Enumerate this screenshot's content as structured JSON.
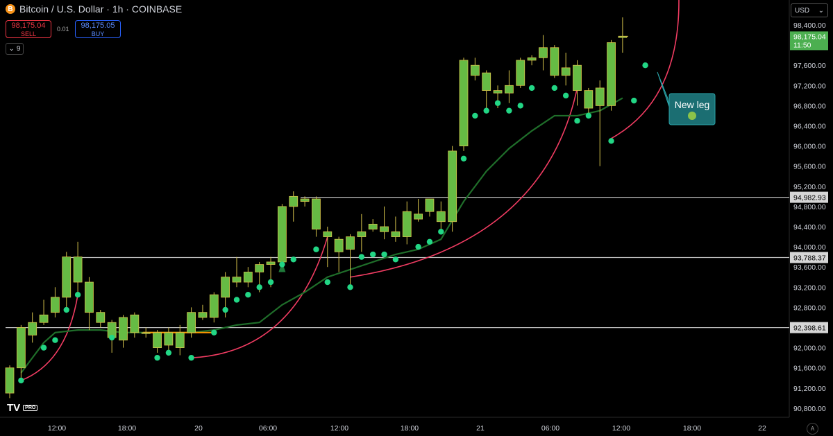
{
  "header": {
    "symbol_icon": "B",
    "title": "Bitcoin / U.S. Dollar · 1h · COINBASE",
    "sell_price": "98,175.04",
    "sell_label": "SELL",
    "buy_price": "98,175.05",
    "buy_label": "BUY",
    "spread": "0.01",
    "indicators_count": "9"
  },
  "toolbar": {
    "currency": "USD",
    "auto_label": "A"
  },
  "logo": {
    "text": "TV",
    "badge": "PRO"
  },
  "colors": {
    "background": "#000000",
    "candle_up": "#66bb44",
    "candle_down": "#66bb44",
    "wick": "#d4c14a",
    "dots": "#22d685",
    "sma": "#1f6e2a",
    "arc": "#f03c62",
    "level_line": "#bdbdbd",
    "annotation_bg": "#1b6e72",
    "last_price_bg": "#4caf50"
  },
  "chart_data": {
    "type": "candlestick",
    "title": "Bitcoin / U.S. Dollar · 1h · COINBASE",
    "y_range": [
      90500,
      98800
    ],
    "y_ticks": [
      98400,
      98000,
      97600,
      97200,
      96800,
      96400,
      96000,
      95600,
      95200,
      94800,
      94400,
      94000,
      93600,
      93200,
      92800,
      92400,
      92000,
      91600,
      91200,
      90800
    ],
    "x_ticks": [
      "12:00",
      "18:00",
      "20",
      "06:00",
      "12:00",
      "18:00",
      "21",
      "06:00",
      "12:00",
      "18:00",
      "22"
    ],
    "candles": [
      [
        91100,
        91600,
        91000,
        91650
      ],
      [
        91600,
        92400,
        91350,
        92450
      ],
      [
        92250,
        92500,
        92100,
        92700
      ],
      [
        92500,
        92650,
        92450,
        92950
      ],
      [
        92700,
        93000,
        92600,
        93200
      ],
      [
        93000,
        93800,
        92800,
        93900
      ],
      [
        93800,
        93300,
        93000,
        94100
      ],
      [
        93300,
        92700,
        92350,
        93400
      ],
      [
        92700,
        92500,
        92400,
        92750
      ],
      [
        92500,
        92200,
        91900,
        92550
      ],
      [
        92150,
        92600,
        92000,
        92650
      ],
      [
        92650,
        92300,
        92200,
        92700
      ],
      [
        92300,
        92300,
        92200,
        92400
      ],
      [
        92300,
        92000,
        91900,
        92350
      ],
      [
        92050,
        92300,
        91850,
        92400
      ],
      [
        92000,
        92300,
        91850,
        92450
      ],
      [
        92300,
        92700,
        92200,
        92800
      ],
      [
        92700,
        92600,
        92550,
        92850
      ],
      [
        92600,
        93050,
        92500,
        93100
      ],
      [
        93000,
        93400,
        92600,
        93500
      ],
      [
        93400,
        93300,
        93200,
        93800
      ],
      [
        93300,
        93500,
        93200,
        93600
      ],
      [
        93500,
        93650,
        93100,
        93700
      ],
      [
        93650,
        93700,
        93200,
        93800
      ],
      [
        93700,
        94800,
        93600,
        94850
      ],
      [
        94800,
        95000,
        94500,
        95100
      ],
      [
        94950,
        94900,
        94800,
        95000
      ],
      [
        94950,
        94350,
        94200,
        95000
      ],
      [
        94300,
        94200,
        93600,
        94400
      ],
      [
        94150,
        93900,
        93500,
        94200
      ],
      [
        93950,
        94200,
        93200,
        94250
      ],
      [
        94200,
        94300,
        93900,
        94650
      ],
      [
        94350,
        94450,
        94300,
        94550
      ],
      [
        94400,
        94300,
        94150,
        94800
      ],
      [
        94300,
        94200,
        94100,
        94600
      ],
      [
        94200,
        94700,
        94050,
        94900
      ],
      [
        94550,
        94650,
        94500,
        94950
      ],
      [
        94700,
        94950,
        94600,
        94950
      ],
      [
        94700,
        94500,
        94350,
        94900
      ],
      [
        94500,
        95900,
        94300,
        96000
      ],
      [
        96000,
        97700,
        95900,
        97750
      ],
      [
        97600,
        97400,
        97300,
        97750
      ],
      [
        97450,
        97100,
        96700,
        97500
      ],
      [
        97050,
        97100,
        96750,
        97200
      ],
      [
        97050,
        97200,
        96850,
        97500
      ],
      [
        97200,
        97700,
        97150,
        97750
      ],
      [
        97700,
        97750,
        97600,
        97800
      ],
      [
        97750,
        97950,
        97500,
        98200
      ],
      [
        97950,
        97400,
        97350,
        98000
      ],
      [
        97400,
        97550,
        97200,
        97850
      ],
      [
        97600,
        97100,
        96800,
        97700
      ],
      [
        97100,
        96750,
        96600,
        97150
      ],
      [
        96800,
        97150,
        95600,
        97300
      ],
      [
        96800,
        98050,
        96700,
        98100
      ],
      [
        98150,
        98175.04,
        97850,
        98550
      ]
    ],
    "dots": [
      [
        1,
        91350
      ],
      [
        3,
        92000
      ],
      [
        4,
        92150
      ],
      [
        5,
        92750
      ],
      [
        6,
        93050
      ],
      [
        9,
        92200
      ],
      [
        13,
        91800
      ],
      [
        14,
        91900
      ],
      [
        16,
        91800
      ],
      [
        18,
        92300
      ],
      [
        19,
        92750
      ],
      [
        20,
        92950
      ],
      [
        21,
        93050
      ],
      [
        22,
        93200
      ],
      [
        23,
        93300
      ],
      [
        24,
        93650
      ],
      [
        25,
        93750
      ],
      [
        27,
        93950
      ],
      [
        28,
        93300
      ],
      [
        30,
        93200
      ],
      [
        31,
        93800
      ],
      [
        32,
        93850
      ],
      [
        33,
        93850
      ],
      [
        34,
        93750
      ],
      [
        36,
        94000
      ],
      [
        37,
        94100
      ],
      [
        38,
        94300
      ],
      [
        40,
        95750
      ],
      [
        41,
        96600
      ],
      [
        42,
        96700
      ],
      [
        43,
        96850
      ],
      [
        44,
        96700
      ],
      [
        45,
        96800
      ],
      [
        46,
        97150
      ],
      [
        48,
        97150
      ],
      [
        49,
        97000
      ],
      [
        50,
        96500
      ],
      [
        51,
        96600
      ],
      [
        53,
        96100
      ],
      [
        55,
        96900
      ],
      [
        56,
        97600
      ]
    ],
    "sma": [
      [
        1,
        91500
      ],
      [
        3,
        92100
      ],
      [
        4,
        92300
      ],
      [
        6,
        92350
      ],
      [
        8,
        92350
      ],
      [
        10,
        92300
      ],
      [
        12,
        92300
      ],
      [
        14,
        92300
      ],
      [
        16,
        92300
      ],
      [
        18,
        92350
      ],
      [
        20,
        92450
      ],
      [
        22,
        92500
      ],
      [
        24,
        92850
      ],
      [
        26,
        93100
      ],
      [
        28,
        93400
      ],
      [
        30,
        93550
      ],
      [
        32,
        93700
      ],
      [
        34,
        93850
      ],
      [
        36,
        93950
      ],
      [
        38,
        94150
      ],
      [
        40,
        94900
      ],
      [
        42,
        95500
      ],
      [
        44,
        95950
      ],
      [
        46,
        96300
      ],
      [
        48,
        96600
      ],
      [
        50,
        96600
      ],
      [
        52,
        96700
      ],
      [
        54,
        96950
      ]
    ],
    "horizontal_levels": [
      {
        "price": 94982.93,
        "label": "94,982.93",
        "from_candle": 26
      },
      {
        "price": 93788.37,
        "label": "93,788.37",
        "from_candle": 5
      },
      {
        "price": 92398.61,
        "label": "92,398.61",
        "from_candle": 0
      }
    ],
    "last_price": {
      "label": "98,175.04",
      "countdown": "11:50",
      "price": 98175.04
    },
    "annotation": {
      "text": "New leg"
    }
  }
}
